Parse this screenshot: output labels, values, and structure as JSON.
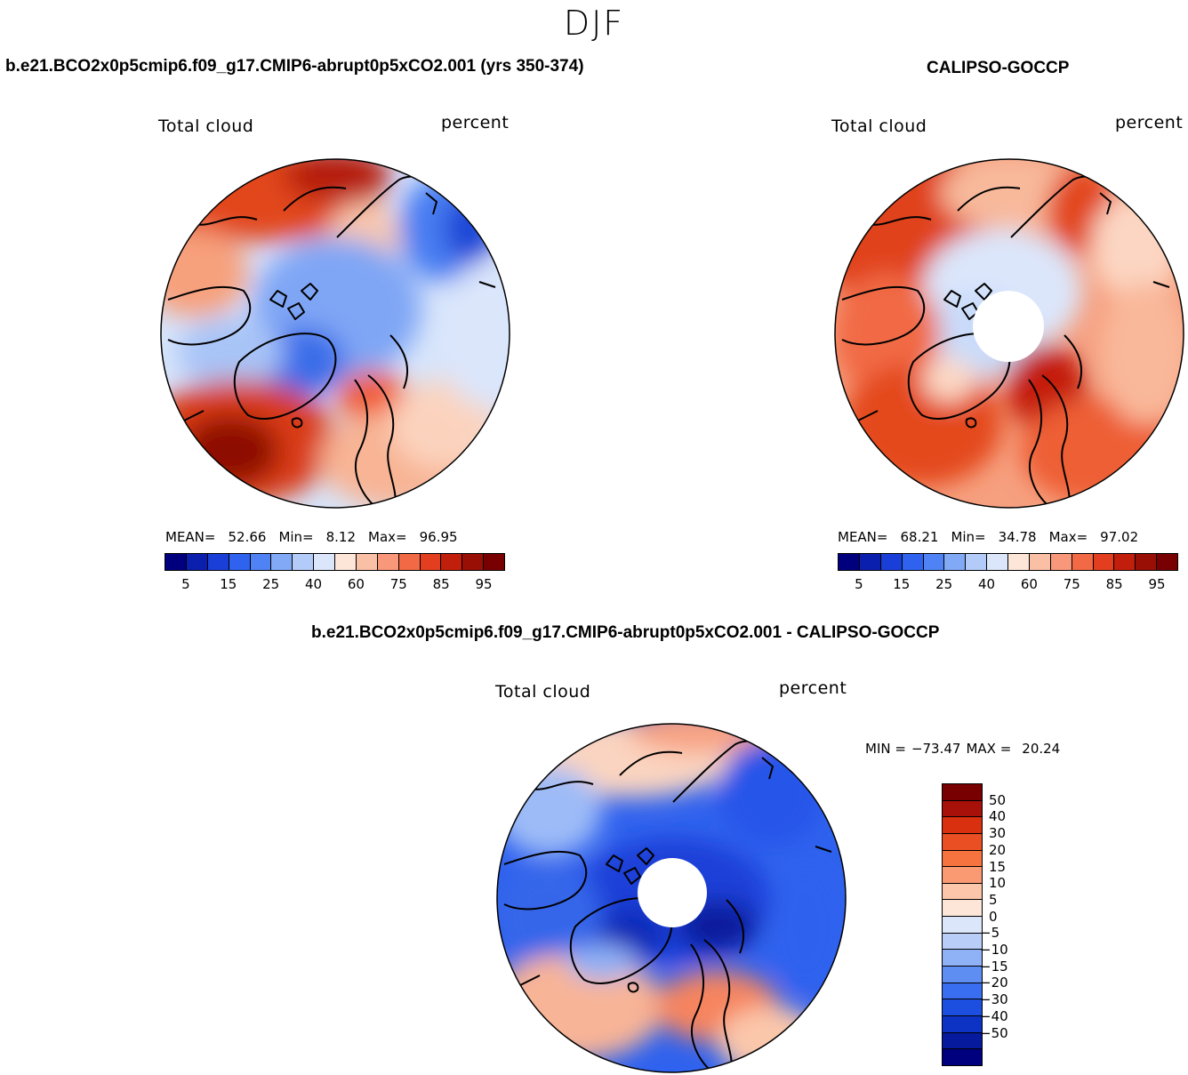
{
  "season": "DJF",
  "panels": {
    "model": {
      "title": "b.e21.BCO2x0p5cmip6.f09_g17.CMIP6-abrupt0p5xCO2.001 (yrs 350-374)",
      "variable": "Total cloud",
      "units": "percent",
      "mean_label": "MEAN=",
      "mean": "52.66",
      "min_label": "Min=",
      "min": "8.12",
      "max_label": "Max=",
      "max": "96.95"
    },
    "obs": {
      "title": "CALIPSO-GOCCP",
      "variable": "Total cloud",
      "units": "percent",
      "mean_label": "MEAN=",
      "mean": "68.21",
      "min_label": "Min=",
      "min": "34.78",
      "max_label": "Max=",
      "max": "97.02"
    },
    "diff": {
      "title": "b.e21.BCO2x0p5cmip6.f09_g17.CMIP6-abrupt0p5xCO2.001 - CALIPSO-GOCCP",
      "variable": "Total cloud",
      "units": "percent",
      "min_label": "MIN =",
      "min": "−73.47",
      "max_label": "MAX =",
      "max": "20.24"
    }
  },
  "abs_colorbar": {
    "colors": [
      "#00007f",
      "#0a1fae",
      "#1a3fd8",
      "#2f62ee",
      "#4f82f4",
      "#82a9f6",
      "#b3cbf8",
      "#dbe6fb",
      "#fde5d8",
      "#f9c0a6",
      "#f8977a",
      "#f16a45",
      "#e23e1f",
      "#c21e0c",
      "#9a0f05",
      "#790000"
    ],
    "tick_labels": [
      "5",
      "15",
      "25",
      "40",
      "60",
      "75",
      "85",
      "95"
    ]
  },
  "diff_colorbar": {
    "colors": [
      "#790000",
      "#a8100a",
      "#d9310f",
      "#ea4f24",
      "#f6733f",
      "#fa9a72",
      "#fcc6aa",
      "#fde6d8",
      "#dbe6fb",
      "#b8cef9",
      "#8fb1f6",
      "#5f8ef3",
      "#3a6ef0",
      "#1c4fe0",
      "#0d33c4",
      "#051a9c",
      "#00007f"
    ],
    "tick_labels": [
      "50",
      "40",
      "30",
      "20",
      "15",
      "10",
      "5",
      "0",
      "−5",
      "−10",
      "−15",
      "−20",
      "−30",
      "−40",
      "−50"
    ]
  }
}
